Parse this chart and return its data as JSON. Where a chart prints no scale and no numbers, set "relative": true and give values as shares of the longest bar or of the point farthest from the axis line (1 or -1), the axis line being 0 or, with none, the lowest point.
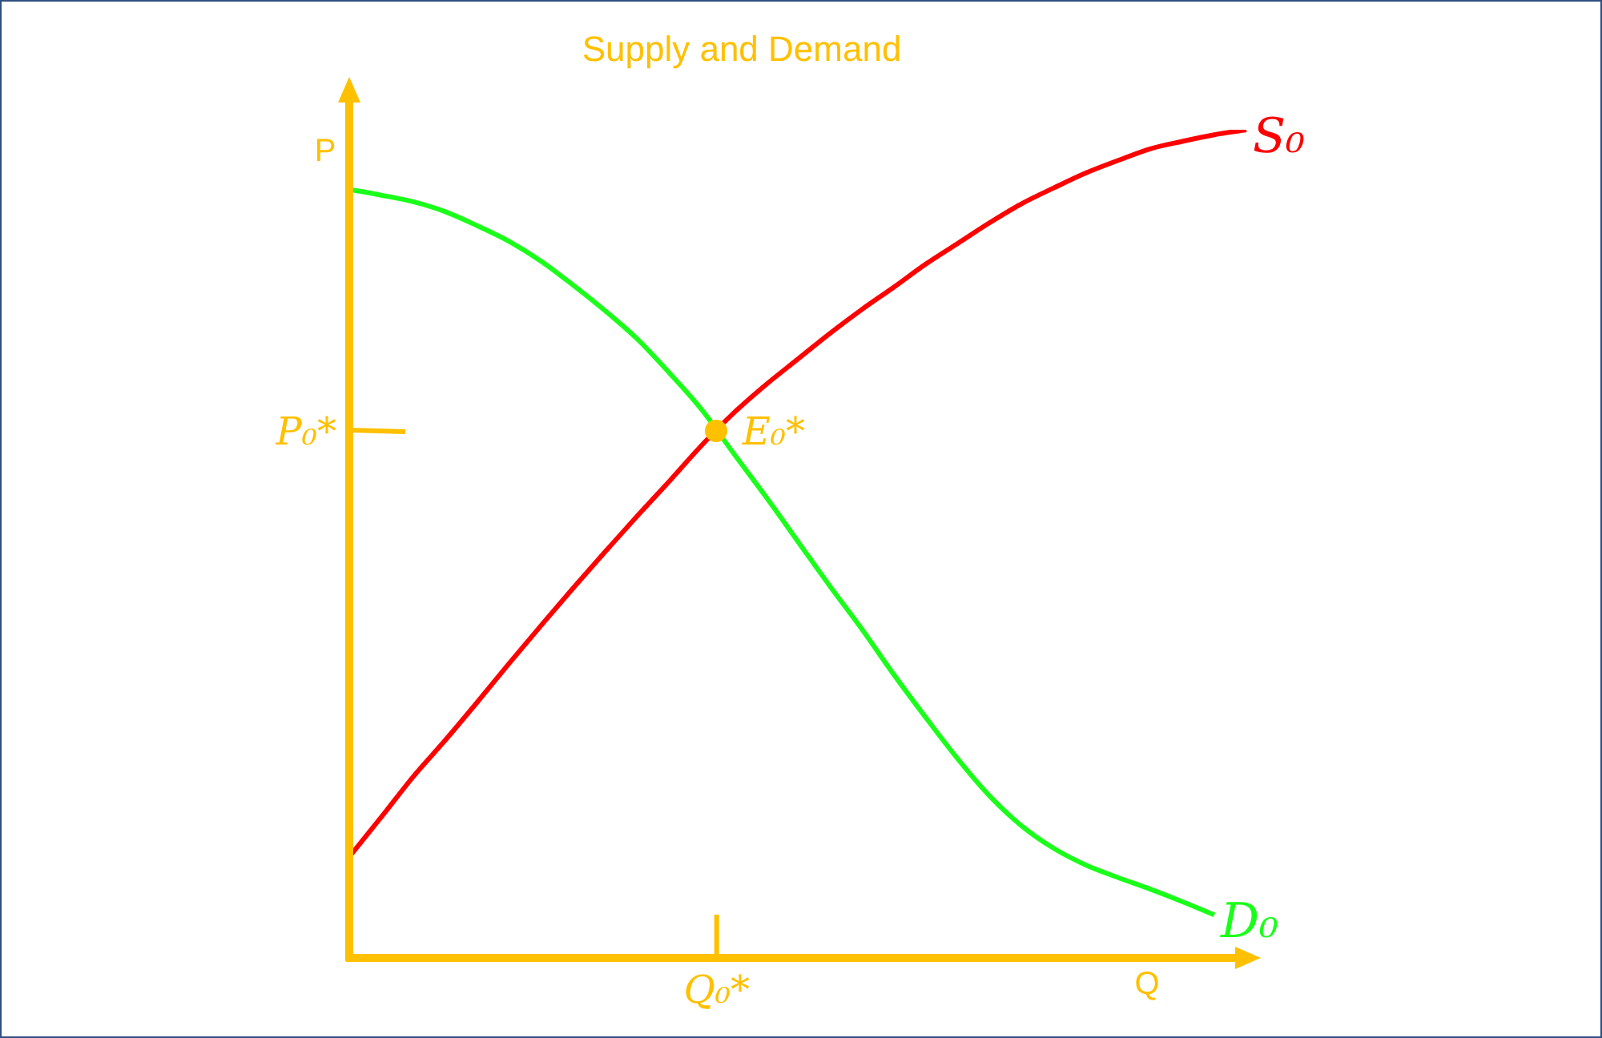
{
  "chart_data": {
    "type": "line",
    "title": "Supply and Demand",
    "xlabel": "Q",
    "ylabel": "P",
    "relative": true,
    "marker": "none",
    "legend": false,
    "categories": [
      null,
      null,
      null,
      null,
      null,
      null,
      null,
      null,
      null,
      null,
      null,
      null,
      null,
      null,
      null,
      null,
      null,
      null,
      null,
      null,
      null,
      null,
      null,
      null,
      null,
      null,
      null,
      null,
      null
    ],
    "series": [
      {
        "name": "S₀",
        "color": "#ff0000",
        "values": [
          0.122,
          0.17,
          0.219,
          0.263,
          0.309,
          0.356,
          0.402,
          0.447,
          0.491,
          0.534,
          0.576,
          0.619,
          0.658,
          0.692,
          0.723,
          0.754,
          0.783,
          0.81,
          0.838,
          0.863,
          0.888,
          0.911,
          0.93,
          0.948,
          0.963,
          0.977,
          0.986,
          0.994,
          1
        ]
      },
      {
        "name": "D₀",
        "color": "#1aff1a",
        "values": [
          0.928,
          0.921,
          0.913,
          0.901,
          0.884,
          0.865,
          0.841,
          0.812,
          0.781,
          0.747,
          0.706,
          0.662,
          0.609,
          0.557,
          0.503,
          0.449,
          0.397,
          0.342,
          0.29,
          0.24,
          0.195,
          0.159,
          0.132,
          0.112,
          0.097,
          0.083,
          0.068,
          0.052,
          null
        ]
      }
    ],
    "annotations": [
      "E₀*",
      "P₀*",
      "Q₀*"
    ]
  }
}
